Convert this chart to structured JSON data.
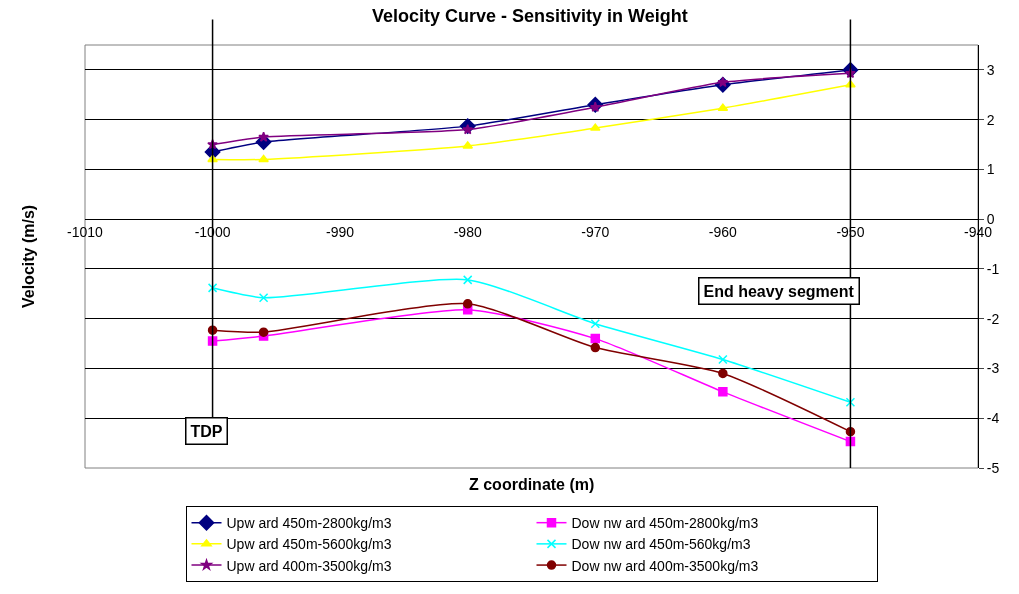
{
  "chart_data": {
    "type": "line",
    "title": "Velocity Curve - Sensitivity in Weight",
    "xlabel": "Z coordinate (m)",
    "ylabel": "Velocity (m/s)",
    "x": [
      -1000,
      -996,
      -980,
      -970,
      -960,
      -950
    ],
    "series": [
      {
        "name": "Upw ard 450m-2800kg/m3",
        "color": "#000080",
        "marker": "diamond",
        "values": [
          1.35,
          1.55,
          1.87,
          2.3,
          2.7,
          3.0
        ]
      },
      {
        "name": "Dow nw ard 450m-2800kg/m3",
        "color": "#ff00ff",
        "marker": "square",
        "values": [
          -2.45,
          -2.35,
          -1.82,
          -2.4,
          -3.47,
          -4.47
        ]
      },
      {
        "name": "Upw ard 450m-5600kg/m3",
        "color": "#ffff00",
        "marker": "triangle",
        "values": [
          1.2,
          1.2,
          1.47,
          1.83,
          2.23,
          2.7
        ]
      },
      {
        "name": "Dow nw ard 450m-560kg/m3",
        "color": "#00ffff",
        "marker": "cross",
        "values": [
          -1.38,
          -1.58,
          -1.22,
          -2.1,
          -2.82,
          -3.68
        ]
      },
      {
        "name": "Upw ard 400m-3500kg/m3",
        "color": "#800080",
        "marker": "star",
        "values": [
          1.5,
          1.65,
          1.8,
          2.25,
          2.75,
          2.93
        ]
      },
      {
        "name": "Dow nw ard 400m-3500kg/m3",
        "color": "#800000",
        "marker": "circle",
        "values": [
          -2.23,
          -2.27,
          -1.7,
          -2.58,
          -3.1,
          -4.27
        ]
      }
    ],
    "xlim": [
      -1010,
      -940
    ],
    "xticks": [
      -1010,
      -1000,
      -990,
      -980,
      -970,
      -960,
      -950,
      -940
    ],
    "ylim": [
      -5,
      3.5
    ],
    "yticks": [
      -5,
      -4,
      -3,
      -2,
      -1,
      0,
      1,
      2,
      3
    ],
    "ref_lines": [
      {
        "axis": "x",
        "value": -1000,
        "label": "TDP",
        "color": "#000000"
      },
      {
        "axis": "x",
        "value": -950,
        "label": "End heavy segment",
        "color": "#000000"
      }
    ],
    "grid": "y",
    "legend": "bottom",
    "line_style": "solid"
  }
}
